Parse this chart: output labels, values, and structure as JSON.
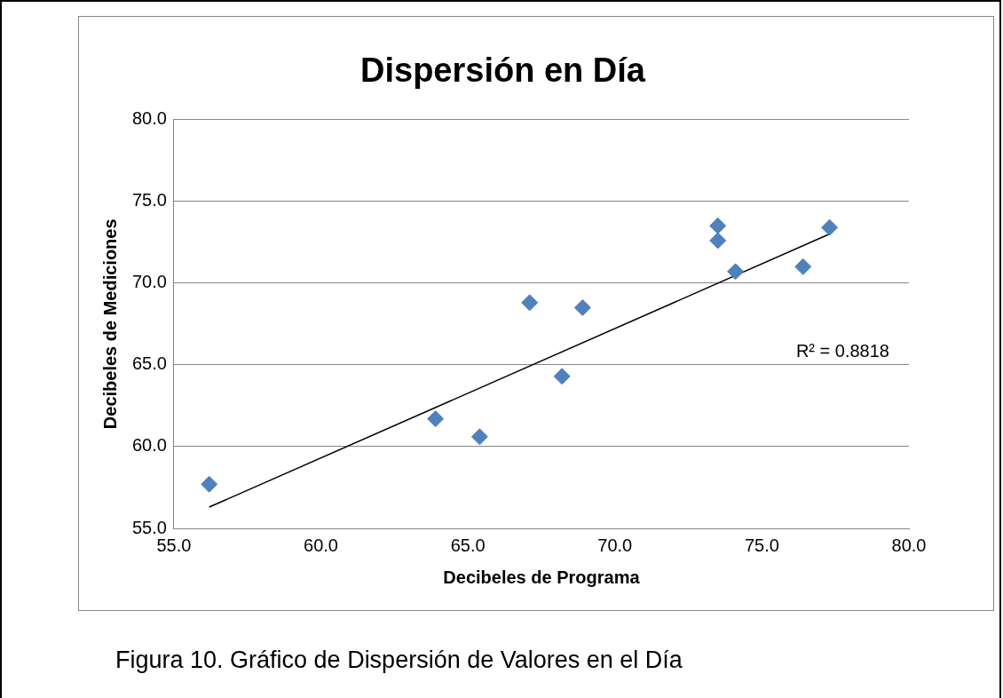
{
  "chart_data": {
    "type": "scatter",
    "title": "Dispersión en Día",
    "xlabel": "Decibeles de Programa",
    "ylabel": "Decibeles de Mediciones",
    "x": [
      56.2,
      63.9,
      65.4,
      67.1,
      68.2,
      68.9,
      73.5,
      73.5,
      74.1,
      76.4,
      77.3
    ],
    "series": [
      {
        "color": "#4f81bd",
        "values": [
          57.7,
          61.7,
          60.6,
          68.8,
          64.3,
          68.5,
          73.5,
          72.6,
          70.7,
          71.0,
          73.4
        ],
        "marker": "diamond"
      },
      {
        "type": "line",
        "color": "#000000",
        "x": [
          56.2,
          77.3
        ],
        "values": [
          56.3,
          73.0
        ],
        "marker": "none"
      }
    ],
    "xlim": [
      55,
      80
    ],
    "xticks": [
      {
        "value": 55,
        "label": "55.0"
      },
      {
        "value": 60,
        "label": "60.0"
      },
      {
        "value": 65,
        "label": "65.0"
      },
      {
        "value": 70,
        "label": "70.0"
      },
      {
        "value": 75,
        "label": "75.0"
      },
      {
        "value": 80,
        "label": "80.0"
      }
    ],
    "ylim": [
      55,
      80
    ],
    "yticks": [
      {
        "value": 55,
        "label": "55.0"
      },
      {
        "value": 60,
        "label": "60.0"
      },
      {
        "value": 65,
        "label": "65.0"
      },
      {
        "value": 70,
        "label": "70.0"
      },
      {
        "value": 75,
        "label": "75.0"
      },
      {
        "value": 80,
        "label": "80.0"
      }
    ],
    "grid": "y",
    "legend": false,
    "annotations": [
      "R² = 0.8818",
      "Figura 10. Gráfico de Dispersión de Valores en el Día"
    ]
  }
}
